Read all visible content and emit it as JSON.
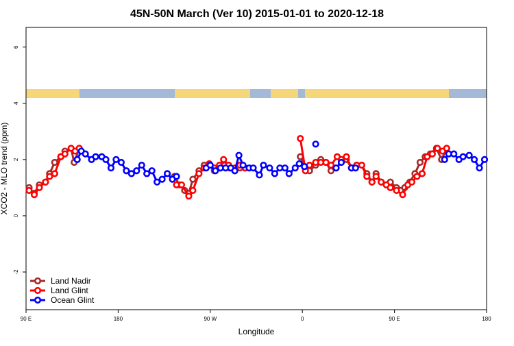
{
  "chart_data": {
    "type": "line",
    "title": "45N-50N March (Ver 10)   2015-01-01 to 2020-12-18",
    "xlabel": "Longitude",
    "ylabel": "XCO2 - MLO trend (ppm)",
    "xlim": [
      90,
      540
    ],
    "ylim": [
      -3.34,
      6.7
    ],
    "xticks": [
      {
        "value": 90,
        "label": "90 E"
      },
      180,
      {
        "value": 270,
        "label": "90 W"
      },
      {
        "value": 360,
        "label": "0"
      },
      {
        "value": 450,
        "label": "90 E"
      },
      {
        "value": 540,
        "label": "180"
      }
    ],
    "yticks": [
      -2,
      0,
      2,
      4,
      6
    ],
    "legend": "bottom-left",
    "series": [
      {
        "name": "Land Nadir",
        "color": "#a52a2a",
        "x": [
          93,
          98,
          103,
          109,
          113,
          118,
          124,
          128,
          134,
          137,
          142,
          200,
          235,
          240,
          245,
          249,
          253,
          259,
          264,
          269,
          274,
          279,
          284,
          289,
          294,
          299,
          304,
          330,
          358,
          363,
          367,
          373,
          378,
          383,
          388,
          393,
          398,
          403,
          408,
          413,
          418,
          423,
          428,
          432,
          437,
          442,
          446,
          452,
          456,
          460,
          465,
          470,
          475,
          480,
          485,
          491,
          496,
          501
        ],
        "values": [
          1.0,
          0.8,
          1.1,
          1.2,
          1.5,
          1.9,
          2.1,
          2.3,
          2.4,
          1.9,
          2.4,
          null,
          1.4,
          1.1,
          0.9,
          0.8,
          1.3,
          1.6,
          1.8,
          1.8,
          1.6,
          1.7,
          1.8,
          1.7,
          1.6,
          1.7,
          1.7,
          null,
          2.1,
          1.7,
          1.6,
          1.8,
          2.0,
          1.9,
          1.6,
          1.7,
          1.9,
          2.0,
          1.7,
          1.8,
          1.8,
          1.5,
          1.2,
          1.5,
          1.2,
          1.1,
          1.2,
          1.0,
          0.9,
          1.0,
          1.2,
          1.5,
          1.9,
          2.1,
          2.2,
          2.4,
          2.0,
          2.4
        ]
      },
      {
        "name": "Land Glint",
        "color": "#ff0000",
        "x": [
          93,
          98,
          103,
          109,
          113,
          118,
          124,
          128,
          134,
          138,
          142,
          200,
          237,
          242,
          249,
          253,
          259,
          264,
          269,
          274,
          279,
          283,
          288,
          294,
          299,
          304,
          330,
          358,
          363,
          367,
          373,
          378,
          383,
          388,
          394,
          398,
          403,
          408,
          413,
          418,
          423,
          428,
          432,
          437,
          442,
          446,
          452,
          458,
          463,
          467,
          472,
          477,
          482,
          487,
          492,
          497,
          501
        ],
        "values": [
          0.9,
          0.75,
          1.0,
          1.2,
          1.4,
          1.5,
          2.1,
          2.2,
          2.4,
          2.3,
          2.4,
          null,
          1.1,
          1.1,
          0.7,
          0.9,
          1.5,
          1.7,
          1.85,
          1.7,
          1.8,
          2.0,
          1.8,
          1.7,
          1.8,
          1.7,
          null,
          2.75,
          1.6,
          1.8,
          1.9,
          1.9,
          1.9,
          1.8,
          2.1,
          2.0,
          2.1,
          1.7,
          1.8,
          1.8,
          1.4,
          1.2,
          1.4,
          1.2,
          1.1,
          1.0,
          0.9,
          0.75,
          1.1,
          1.2,
          1.4,
          1.5,
          2.1,
          2.2,
          2.4,
          2.3,
          2.4
        ]
      },
      {
        "name": "Ocean Glint",
        "color": "#0000ff",
        "x": [
          140,
          144,
          148,
          154,
          158,
          164,
          168,
          173,
          178,
          183,
          188,
          193,
          198,
          203,
          208,
          213,
          218,
          223,
          228,
          233,
          237,
          270,
          266,
          270,
          275,
          280,
          285,
          290,
          294,
          298,
          302,
          308,
          312,
          318,
          322,
          328,
          333,
          338,
          343,
          347,
          353,
          357,
          362,
          365,
          373,
          380,
          393,
          398,
          400,
          408,
          412,
          430,
          499,
          503,
          508,
          513,
          517,
          523,
          528,
          533,
          538
        ],
        "values": [
          2.0,
          2.3,
          2.2,
          2.0,
          2.1,
          2.1,
          2.0,
          1.7,
          2.0,
          1.9,
          1.6,
          1.5,
          1.6,
          1.8,
          1.5,
          1.6,
          1.2,
          1.3,
          1.5,
          1.3,
          1.4,
          null,
          1.7,
          1.8,
          1.6,
          1.7,
          1.7,
          1.7,
          1.6,
          2.15,
          1.8,
          1.7,
          1.7,
          1.45,
          1.8,
          1.7,
          1.5,
          1.7,
          1.7,
          1.5,
          1.7,
          1.85,
          1.75,
          null,
          2.55,
          null,
          1.7,
          1.9,
          null,
          1.7,
          1.7,
          null,
          2.0,
          2.2,
          2.2,
          2.0,
          2.1,
          2.15,
          2.0,
          1.7,
          2.0
        ]
      }
    ]
  }
}
